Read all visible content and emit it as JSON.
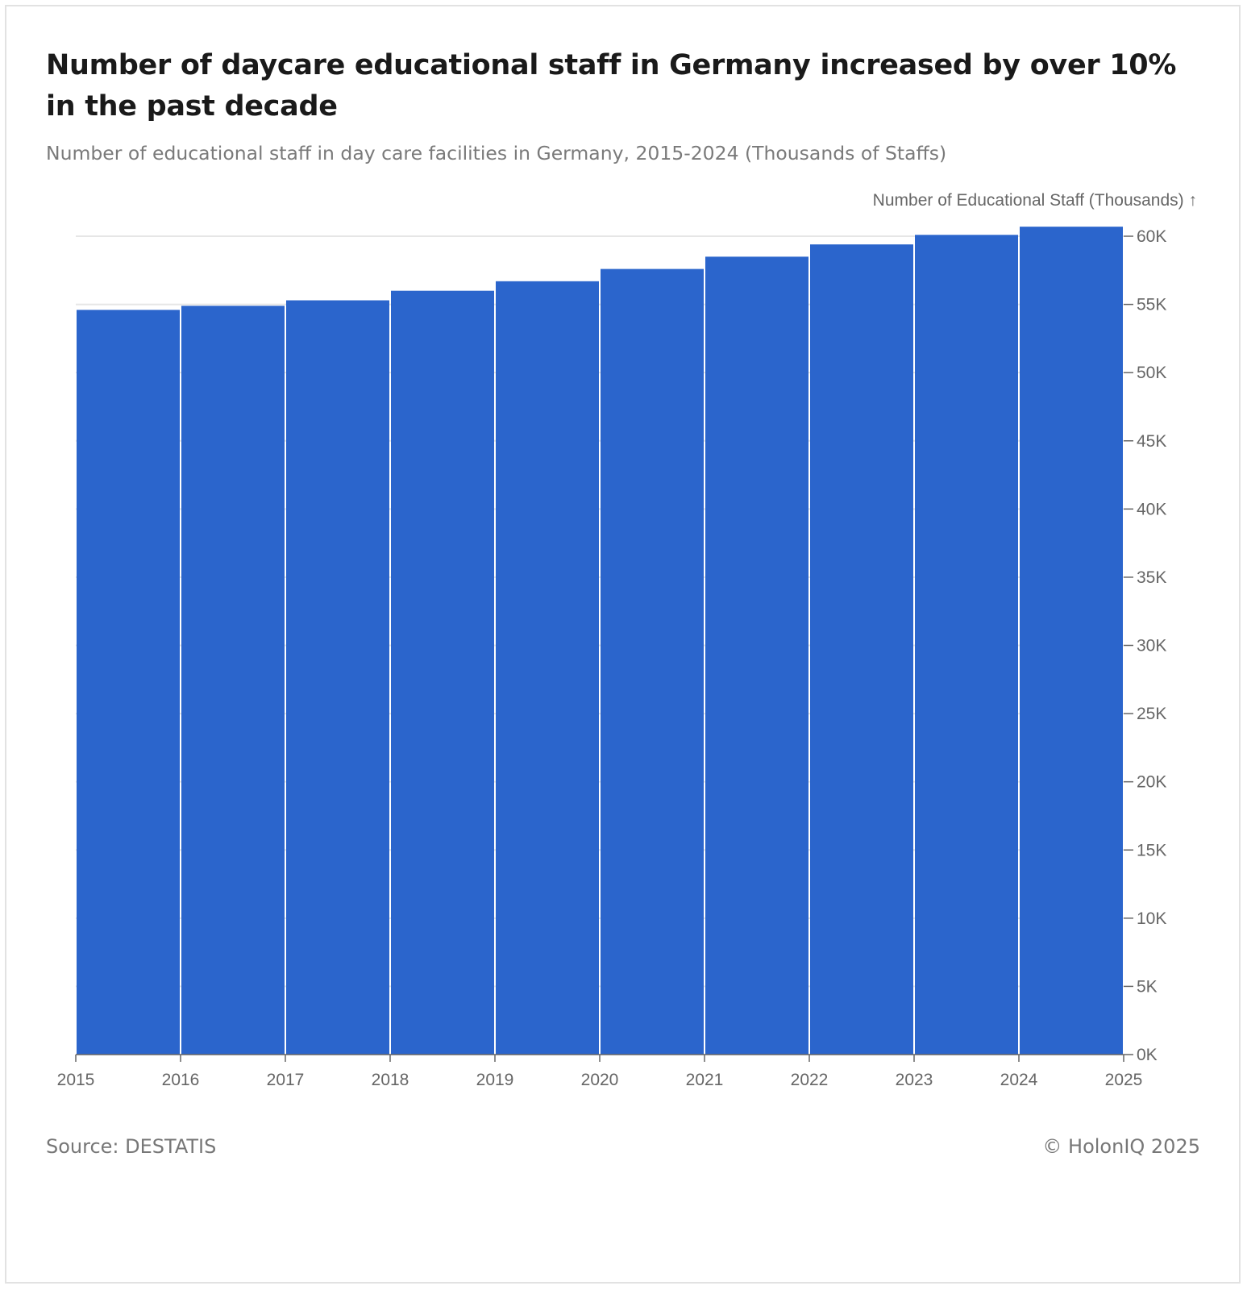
{
  "title": "Number of daycare educational staff in Germany increased by over 10% in the past decade",
  "subtitle": "Number of educational staff in day care facilities in Germany, 2015-2024 (Thousands of Staffs)",
  "source": "Source: DESTATIS",
  "copyright": "© HolonIQ 2025",
  "colors": {
    "bar": "#2b65cc",
    "grid": "#e6e6e6",
    "axis": "#666666"
  },
  "chart_data": {
    "type": "bar",
    "x_edges": [
      2015,
      2016,
      2017,
      2018,
      2019,
      2020,
      2021,
      2022,
      2023,
      2024,
      2025
    ],
    "x_tick_labels": [
      "2015",
      "2016",
      "2017",
      "2018",
      "2019",
      "2020",
      "2021",
      "2022",
      "2023",
      "2024",
      "2025"
    ],
    "categories": [
      "2015",
      "2016",
      "2017",
      "2018",
      "2019",
      "2020",
      "2021",
      "2022",
      "2023",
      "2024"
    ],
    "values": [
      54.6,
      54.9,
      55.3,
      56.0,
      56.7,
      57.6,
      58.5,
      59.4,
      60.1,
      60.7
    ],
    "ylabel": "Number of Educational Staff (Thousands) ↑",
    "ylim": [
      0,
      60
    ],
    "y_ticks": [
      0,
      5,
      10,
      15,
      20,
      25,
      30,
      35,
      40,
      45,
      50,
      55,
      60
    ],
    "y_tick_labels": [
      "0K",
      "5K",
      "10K",
      "15K",
      "20K",
      "25K",
      "30K",
      "35K",
      "40K",
      "45K",
      "50K",
      "55K",
      "60K"
    ],
    "y_axis_position": "right",
    "grid": true
  }
}
